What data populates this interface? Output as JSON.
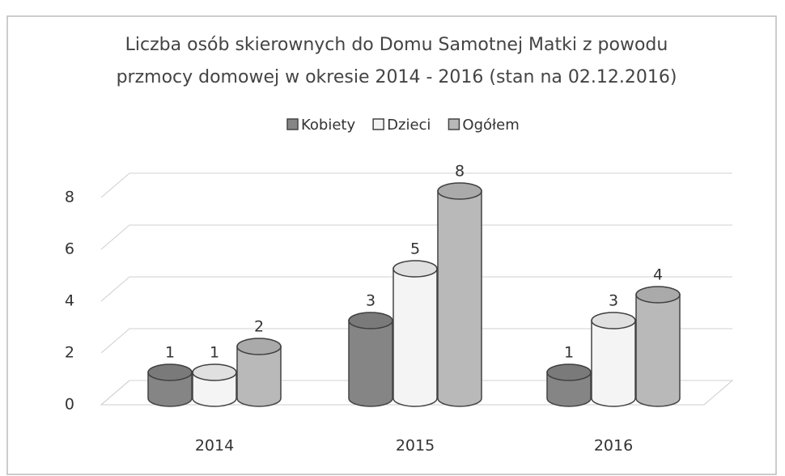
{
  "chart_data": {
    "type": "bar3d",
    "title": [
      "Liczba osób skierownych do Domu Samotnej Matki z powodu",
      "przmocy domowej w okresie 2014 - 2016 (stan na 02.12.2016)"
    ],
    "categories": [
      "2014",
      "2015",
      "2016"
    ],
    "series": [
      {
        "name": "Kobiety",
        "color": "#858585",
        "values": [
          1,
          3,
          1
        ]
      },
      {
        "name": "Dzieci",
        "color": "#f4f4f4",
        "values": [
          1,
          5,
          3
        ]
      },
      {
        "name": "Ogółem",
        "color": "#b9b9b9",
        "values": [
          2,
          8,
          4
        ]
      }
    ],
    "ylim": [
      0,
      8
    ],
    "yticks": [
      0,
      2,
      4,
      6,
      8
    ],
    "grid": true,
    "legend": "top"
  }
}
